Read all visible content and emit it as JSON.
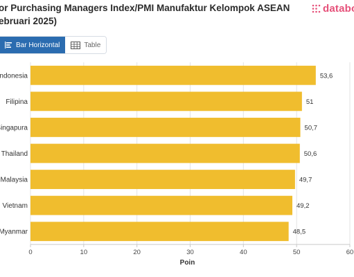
{
  "header": {
    "title": "or Purchasing Managers Index/PMI Manufaktur Kelompok ASEAN ebruari 2025)",
    "brand": "databo",
    "brand_color": "#e6517a"
  },
  "view_toggle": {
    "bar_label": "Bar Horizontal",
    "table_label": "Table",
    "active": "bar",
    "active_color": "#2b6cb0"
  },
  "chart_data": {
    "type": "bar",
    "orientation": "horizontal",
    "categories": [
      "Indonesia",
      "Filipina",
      "Singapura",
      "Thailand",
      "Malaysia",
      "Vietnam",
      "Myanmar"
    ],
    "values": [
      53.6,
      51,
      50.7,
      50.6,
      49.7,
      49.2,
      48.5
    ],
    "value_labels": [
      "53,6",
      "51",
      "50,7",
      "50,6",
      "49,7",
      "49,2",
      "48,5"
    ],
    "xlabel": "Poin",
    "xlim": [
      0,
      60
    ],
    "xticks": [
      0,
      10,
      20,
      30,
      40,
      50,
      60
    ],
    "bar_color": "#f0bd2e",
    "grid": true
  }
}
